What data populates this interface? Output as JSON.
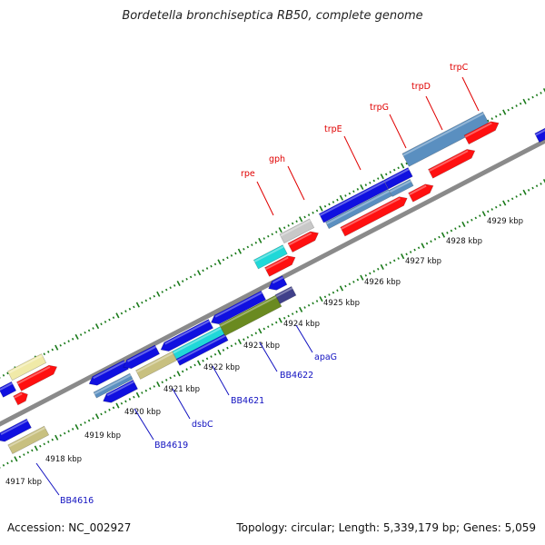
{
  "title": "Bordetella bronchiseptica RB50, complete genome",
  "footer": {
    "accession": "Accession: NC_002927",
    "topology": "Topology: circular; Length: 5,339,179 bp; Genes: 5,059"
  },
  "colors": {
    "backbone": "#8a8a8a",
    "tick_dots": "#1a7a1a",
    "red": "#ff1010",
    "blue": "#1010e0",
    "steelblue": "#5a8fc0",
    "cyan": "#20d8d8",
    "gray": "#c8c8c8",
    "khaki": "#c8c080",
    "paleyellow": "#f0eaa8",
    "olive": "#6a8a20",
    "darkslate": "#40408a",
    "top_label_text": "#e00000",
    "bottom_label_text": "#1010c0"
  },
  "scale_labels": [
    "4917 kbp",
    "4918 kbp",
    "4919 kbp",
    "4920 kbp",
    "4921 kbp",
    "4922 kbp",
    "4923 kbp",
    "4924 kbp",
    "4925 kbp",
    "4926 kbp",
    "4927 kbp",
    "4928 kbp",
    "4929 kbp"
  ],
  "top_gene_labels": [
    "rpe",
    "gph",
    "trpE",
    "trpG",
    "trpD",
    "trpC"
  ],
  "bottom_gene_labels": [
    "BB4616",
    "BB4619",
    "dsbC",
    "BB4621",
    "BB4622",
    "apaG"
  ]
}
